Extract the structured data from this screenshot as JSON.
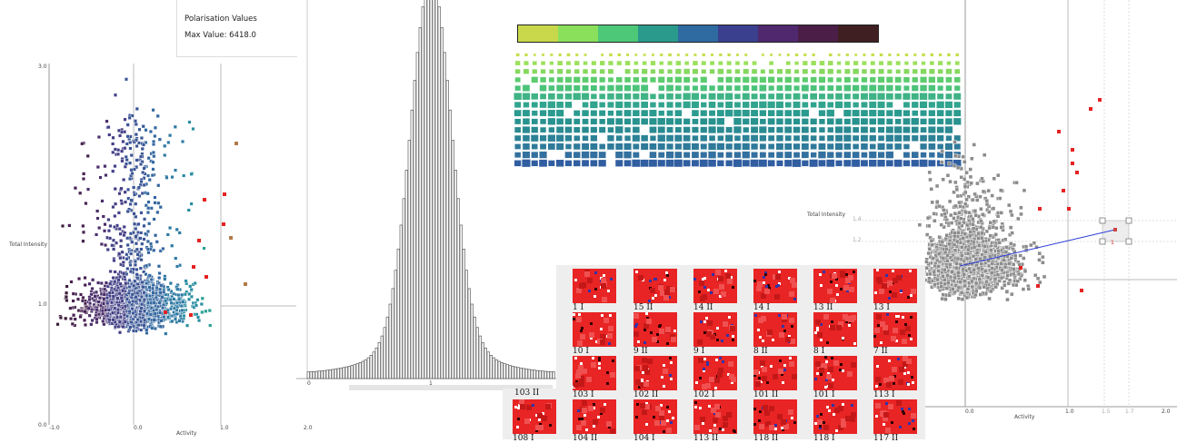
{
  "info_panel": {
    "title": "Polarisation Values",
    "max_value": "Max Value: 6418.0"
  },
  "left_scatter": {
    "ylabel": "Total Intensity",
    "xlabel": "Activity",
    "y_ticks": [
      "3.0",
      "1.0",
      "0.0"
    ],
    "x_ticks": [
      "-1.0",
      "0.0",
      "1.0",
      "2.0"
    ]
  },
  "histogram": {
    "x_ticks": [
      "0",
      "1"
    ]
  },
  "colorbar": {
    "colors": [
      "#c8d84a",
      "#8ae05a",
      "#4cc878",
      "#2a9a8c",
      "#2f6aa0",
      "#3a3f8e",
      "#4f286e",
      "#4a1e46",
      "#3f1f22"
    ]
  },
  "right_scatter": {
    "ylabel": "Total Intensity",
    "xlabel": "Activity",
    "x_ticks": [
      "0.0",
      "1.0",
      "1.5",
      "1.7",
      "2.0"
    ],
    "y_ticks": [
      "1.4",
      "1.2"
    ],
    "marker_label": "1"
  },
  "thumbnails": {
    "header_label": "103 II",
    "items": [
      {
        "label": "1 I"
      },
      {
        "label": "15 II"
      },
      {
        "label": "14 II"
      },
      {
        "label": "14 I"
      },
      {
        "label": "13 II"
      },
      {
        "label": "13 I"
      },
      {
        "label": "10 I"
      },
      {
        "label": "9 II"
      },
      {
        "label": "9 I"
      },
      {
        "label": "8 II"
      },
      {
        "label": "8 I"
      },
      {
        "label": "7 II"
      },
      {
        "label": "103 I"
      },
      {
        "label": "102 II"
      },
      {
        "label": "102 I"
      },
      {
        "label": "101 II"
      },
      {
        "label": "101 I"
      },
      {
        "label": "113 I"
      },
      {
        "label": "108 I"
      },
      {
        "label": "104 II"
      },
      {
        "label": "104 I"
      },
      {
        "label": "113 II"
      },
      {
        "label": "118 II"
      },
      {
        "label": "118 I"
      },
      {
        "label": "117 II"
      }
    ]
  },
  "chart_data": [
    {
      "type": "scatter",
      "title": "",
      "xlabel": "Activity",
      "ylabel": "Total Intensity",
      "xlim": [
        -1.0,
        2.0
      ],
      "ylim": [
        0.0,
        3.0
      ],
      "note": "dense cloud of points coloured by activity"
    },
    {
      "type": "bar",
      "title": "",
      "xlabel": "",
      "ylabel": "",
      "x_ticks": [
        "0",
        "1"
      ]
    },
    {
      "type": "scatter",
      "title": "",
      "xlabel": "Activity",
      "ylabel": "Total Intensity",
      "x_ticks": [
        "0.0",
        "1.0",
        "1.5",
        "1.7",
        "2.0"
      ]
    }
  ]
}
